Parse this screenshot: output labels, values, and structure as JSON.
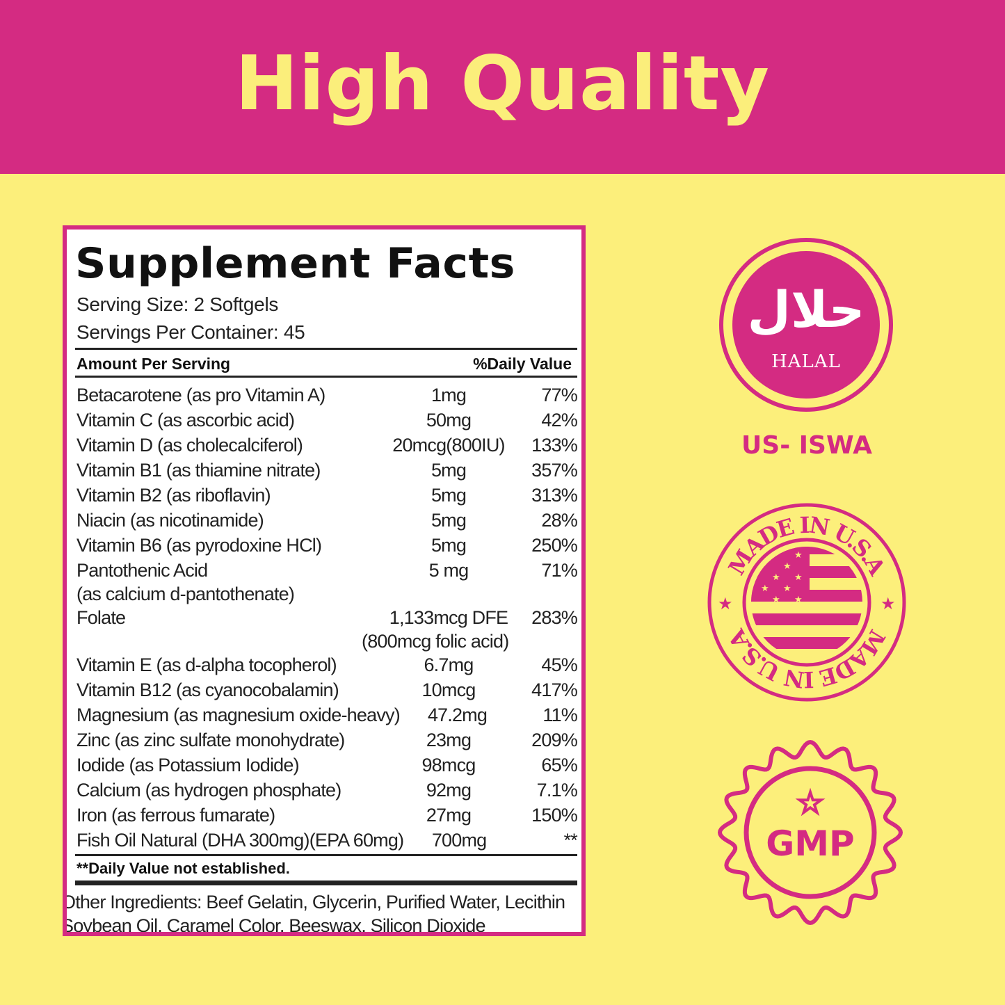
{
  "banner": {
    "title": "High Quality"
  },
  "facts": {
    "title": "Supplement Facts",
    "serving_size": "Serving Size: 2 Softgels",
    "servings_per_container": "Servings Per Container: 45",
    "header_amount": "Amount Per Serving",
    "header_dv": "%Daily Value",
    "rows": [
      {
        "name": "Betacarotene (as pro Vitamin A)",
        "amount": "1mg",
        "dv": "77%"
      },
      {
        "name": "Vitamin C (as ascorbic acid)",
        "amount": "50mg",
        "dv": "42%"
      },
      {
        "name": "Vitamin D (as cholecalciferol)",
        "amount": "20mcg(800IU)",
        "dv": "133%"
      },
      {
        "name": "Vitamin B1 (as thiamine nitrate)",
        "amount": "5mg",
        "dv": "357%"
      },
      {
        "name": "Vitamin B2 (as riboflavin)",
        "amount": "5mg",
        "dv": "313%"
      },
      {
        "name": "Niacin (as nicotinamide)",
        "amount": "5mg",
        "dv": "28%"
      },
      {
        "name": "Vitamin B6 (as pyrodoxine HCl)",
        "amount": "5mg",
        "dv": "250%"
      },
      {
        "name": "Pantothenic Acid",
        "name2": "(as calcium d-pantothenate)",
        "amount": "5 mg",
        "dv": "71%"
      },
      {
        "name": "Folate",
        "amount": "1,133mcg DFE",
        "amount2": "(800mcg folic acid)",
        "dv": "283%"
      },
      {
        "name": "Vitamin E (as d-alpha tocopherol)",
        "amount": "6.7mg",
        "dv": "45%"
      },
      {
        "name": "Vitamin B12 (as cyanocobalamin)",
        "amount": "10mcg",
        "dv": "417%"
      },
      {
        "name": "Magnesium (as magnesium oxide-heavy)",
        "amount": "47.2mg",
        "dv": "11%"
      },
      {
        "name": "Zinc (as zinc sulfate monohydrate)",
        "amount": "23mg",
        "dv": "209%"
      },
      {
        "name": "Iodide (as Potassium Iodide)",
        "amount": "98mcg",
        "dv": "65%"
      },
      {
        "name": "Calcium (as hydrogen phosphate)",
        "amount": "92mg",
        "dv": "7.1%"
      },
      {
        "name": "Iron (as ferrous fumarate)",
        "amount": "27mg",
        "dv": "150%"
      },
      {
        "name": "Fish Oil Natural (DHA 300mg)(EPA 60mg)",
        "amount": "700mg",
        "dv": "**"
      }
    ],
    "footnote": "**Daily Value not established.",
    "other_ingredients": "Other Ingredients: Beef Gelatin, Glycerin, Purified Water, Lecithin Soybean Oil, Caramel Color, Beeswax, Silicon Dioxide"
  },
  "badges": {
    "halal_arabic": "حلال",
    "halal_label": "HALAL",
    "halal_cert": "US- ISWA",
    "usa_text": "MADE IN U.S.A",
    "gmp": "GMP"
  },
  "colors": {
    "pink": "#d42b82",
    "yellow": "#fcef7b"
  }
}
